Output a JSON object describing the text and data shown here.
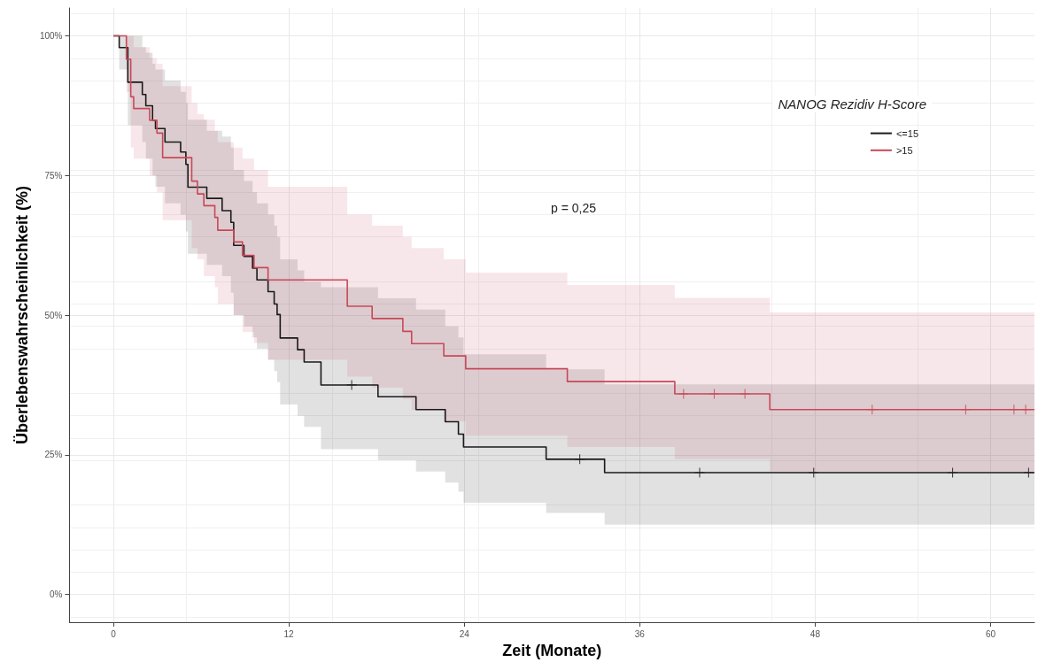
{
  "chart_data": {
    "type": "step",
    "xlabel": "Zeit (Monate)",
    "ylabel": "Überlebenswahrscheinlichkeit (%)",
    "legend_title": "NANOG Rezidiv H-Score",
    "legend": "top right",
    "grid": true,
    "line_style": "solid",
    "xlim": [
      -3,
      63
    ],
    "xticks": [
      0,
      12,
      24,
      36,
      48,
      60
    ],
    "ylim": [
      -5,
      105
    ],
    "yticks": [
      {
        "value": 0,
        "label": "0%"
      },
      {
        "value": 25,
        "label": "25%"
      },
      {
        "value": 50,
        "label": "50%"
      },
      {
        "value": 75,
        "label": "75%"
      },
      {
        "value": 100,
        "label": "100%"
      }
    ],
    "annotations": [
      "p = 0,25"
    ],
    "series": [
      {
        "name": "<=15",
        "color": "#1a1a1a",
        "x": [
          0,
          0.4,
          0.99,
          1.98,
          2.22,
          2.68,
          2.88,
          3.53,
          4.6,
          4.96,
          5.1,
          6.39,
          7.44,
          8.04,
          8.23,
          8.93,
          9.52,
          9.82,
          10.58,
          11.0,
          11.2,
          11.41,
          12.6,
          13.05,
          14.2,
          18.1,
          20.7,
          22.7,
          23.6,
          23.95,
          29.6,
          33.6,
          63
        ],
        "values": [
          100,
          97.9,
          91.7,
          89.5,
          87.5,
          84.9,
          83.4,
          81,
          79.2,
          77,
          72.9,
          70.9,
          68.7,
          66.6,
          62.5,
          60.5,
          58.4,
          56.3,
          54.2,
          52,
          50.1,
          45.9,
          43.8,
          41.6,
          37.5,
          35.4,
          33.1,
          30.9,
          28.7,
          26.4,
          24.2,
          21.8,
          21.8
        ],
        "lower": [
          100,
          94,
          84,
          81,
          78,
          75,
          73,
          70,
          68,
          65,
          61,
          59,
          57,
          54,
          50,
          48,
          46,
          44,
          42,
          40,
          38,
          34,
          32,
          30,
          26,
          24,
          22,
          20,
          18.4,
          16.4,
          14.6,
          12.5,
          12.5
        ],
        "upper": [
          100,
          100,
          100,
          98,
          97,
          95,
          94,
          92,
          90,
          88,
          85,
          83,
          82,
          80,
          76,
          74,
          72,
          70,
          68,
          66,
          64,
          60,
          58,
          56,
          55,
          53,
          51,
          48,
          46,
          43,
          40.3,
          37.6,
          37.6
        ]
      },
      {
        "name": ">15",
        "color": "#c8485a",
        "x": [
          0,
          0.89,
          1.19,
          1.39,
          2.48,
          2.98,
          3.37,
          5.36,
          5.75,
          6.19,
          6.94,
          7.14,
          8.23,
          8.83,
          9.62,
          10.58,
          16.0,
          17.7,
          19.8,
          20.4,
          22.6,
          24.1,
          31.05,
          38.4,
          44.9,
          63
        ],
        "values": [
          100,
          95.8,
          89.1,
          87,
          84.9,
          82.6,
          78.2,
          74,
          71.7,
          69.6,
          67.5,
          65.2,
          63.1,
          60.7,
          58.5,
          56.3,
          51.6,
          49.4,
          47.1,
          44.9,
          42.7,
          40.4,
          38.1,
          35.9,
          33.1,
          33.1
        ],
        "lower": [
          100,
          90,
          80,
          78,
          75,
          72,
          67,
          62,
          60,
          57,
          55,
          52,
          50,
          47,
          45,
          42,
          39,
          37,
          35,
          33,
          31,
          28.4,
          26.4,
          24.2,
          22,
          22
        ],
        "upper": [
          100,
          100,
          100,
          98,
          96,
          95,
          91,
          88,
          86,
          85,
          83,
          81,
          80,
          78,
          76,
          73,
          68,
          66,
          64,
          62,
          60,
          57.6,
          55.4,
          53.1,
          50.5,
          50.5
        ]
      },
      {
        "type": "scatter",
        "marker": "cross",
        "color": "#1a1a1a",
        "x": [
          16.3,
          31.9,
          40.1,
          47.9,
          57.4,
          62.6
        ],
        "values": [
          37.5,
          24.2,
          21.8,
          21.8,
          21.8,
          21.8
        ]
      },
      {
        "type": "scatter",
        "marker": "cross",
        "color": "#c8485a",
        "x": [
          39.0,
          41.1,
          43.2,
          51.9,
          58.3,
          61.6,
          62.4
        ],
        "values": [
          35.9,
          35.9,
          35.9,
          33.1,
          33.1,
          33.1,
          33.1
        ]
      }
    ]
  }
}
